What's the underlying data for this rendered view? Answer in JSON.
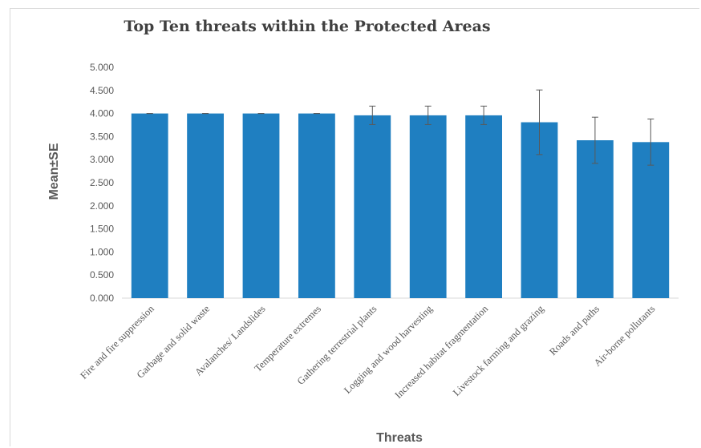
{
  "chart_data": {
    "type": "bar",
    "title": "Top Ten threats within the Protected Areas",
    "xlabel": "Threats",
    "ylabel": "Mean±SE",
    "ylim": [
      0,
      5
    ],
    "yticks": [
      "0.000",
      "0.500",
      "1.000",
      "1.500",
      "2.000",
      "2.500",
      "3.000",
      "3.500",
      "4.000",
      "4.500",
      "5.000"
    ],
    "categories": [
      "Fire and fire suppression",
      "Garbage and solid waste",
      "Avalanches/ Landslides",
      "Temperature extremes",
      "Gathering terrestrial plants",
      "Logging and wood harvesting",
      "Increased habitat fragmentation",
      "Livestock farming and grazing",
      "Roads and paths",
      "Air-borne pollutants"
    ],
    "values": [
      4.0,
      4.0,
      4.0,
      4.0,
      3.96,
      3.96,
      3.96,
      3.81,
      3.42,
      3.38
    ],
    "errors": [
      0.0,
      0.0,
      0.0,
      0.0,
      0.2,
      0.2,
      0.2,
      0.7,
      0.5,
      0.5
    ],
    "bar_color": "#1f7fc1",
    "error_color": "#595959",
    "grid": false
  }
}
